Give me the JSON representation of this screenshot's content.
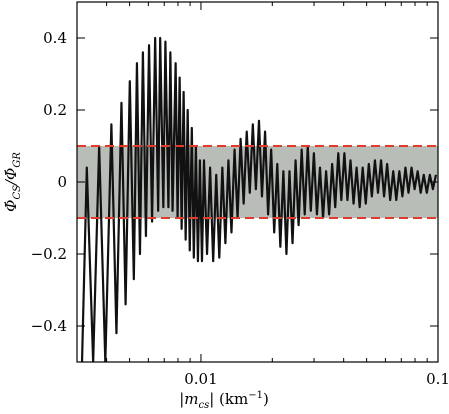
{
  "chart_data": {
    "type": "line",
    "xlabel": [
      "|m",
      "cs",
      "| (km",
      "−1",
      ")"
    ],
    "ylabel": [
      "Φ̇",
      "CS",
      "/Φ̇",
      "GR"
    ],
    "log_x": true,
    "xlim": [
      0.003,
      0.1
    ],
    "ylim": [
      -0.5,
      0.5
    ],
    "xticks": [
      0.01,
      0.1
    ],
    "xminorticks": [
      0.004,
      0.005,
      0.006,
      0.007,
      0.008,
      0.009,
      0.02,
      0.03,
      0.04,
      0.05,
      0.06,
      0.07,
      0.08,
      0.09
    ],
    "yticks": [
      {
        "value": -0.4,
        "label": "−0.4"
      },
      {
        "value": -0.2,
        "label": "−0.2"
      },
      0,
      {
        "value": 0.2,
        "label": "0.2"
      },
      {
        "value": 0.4,
        "label": "0.4"
      }
    ],
    "shaded_band": {
      "ymin": -0.1,
      "ymax": 0.1,
      "color": "#b8bdb8",
      "edge_color": "#e03c2c"
    },
    "series": [
      {
        "color": "#111111",
        "x": [
          0.00315,
          0.0033,
          0.00351,
          0.00372,
          0.00395,
          0.00419,
          0.0044,
          0.00462,
          0.00481,
          0.00501,
          0.00521,
          0.00537,
          0.00553,
          0.00569,
          0.00586,
          0.00604,
          0.00622,
          0.00641,
          0.0066,
          0.00673,
          0.00694,
          0.00708,
          0.00729,
          0.00743,
          0.00759,
          0.00782,
          0.00797,
          0.00813,
          0.00829,
          0.00845,
          0.00862,
          0.00879,
          0.00897,
          0.00915,
          0.00933,
          0.00952,
          0.00971,
          0.0099,
          0.0101,
          0.0103,
          0.01061,
          0.01093,
          0.01126,
          0.0116,
          0.01195,
          0.01231,
          0.01268,
          0.01306,
          0.01345,
          0.01386,
          0.01427,
          0.0147,
          0.01514,
          0.0156,
          0.01607,
          0.01655,
          0.01705,
          0.01757,
          0.01809,
          0.01864,
          0.0192,
          0.01978,
          0.02037,
          0.02099,
          0.02162,
          0.02227,
          0.02294,
          0.02363,
          0.02434,
          0.02507,
          0.02582,
          0.0266,
          0.0274,
          0.02822,
          0.02907,
          0.02995,
          0.03085,
          0.03178,
          0.03273,
          0.03372,
          0.03473,
          0.03577,
          0.03685,
          0.03796,
          0.0391,
          0.04028,
          0.04149,
          0.04274,
          0.04403,
          0.04535,
          0.04672,
          0.04812,
          0.04957,
          0.05107,
          0.0526,
          0.05419,
          0.05582,
          0.0575,
          0.05923,
          0.06101,
          0.06285,
          0.06474,
          0.06668,
          0.06869,
          0.07076,
          0.07289,
          0.07508,
          0.07734,
          0.07967,
          0.08207,
          0.08453,
          0.08708,
          0.0897,
          0.0924,
          0.09518,
          0.09804
        ],
        "values": [
          -0.5,
          0.04,
          -0.5,
          0.1,
          -0.5,
          0.16,
          -0.42,
          0.22,
          -0.34,
          0.28,
          -0.27,
          0.33,
          -0.2,
          0.36,
          -0.15,
          0.38,
          -0.11,
          0.4,
          -0.08,
          0.4,
          -0.07,
          0.39,
          -0.07,
          0.36,
          -0.08,
          0.33,
          -0.1,
          0.29,
          -0.13,
          0.25,
          -0.16,
          0.2,
          -0.19,
          0.15,
          -0.21,
          0.1,
          -0.22,
          0.06,
          -0.22,
          0.06,
          -0.2,
          0.04,
          -0.22,
          0.02,
          -0.21,
          0.04,
          -0.17,
          0.06,
          -0.14,
          0.09,
          -0.1,
          0.12,
          -0.06,
          0.14,
          -0.03,
          0.16,
          -0.02,
          0.17,
          -0.04,
          0.14,
          -0.09,
          0.09,
          -0.14,
          0.05,
          -0.18,
          0.03,
          -0.2,
          0.03,
          -0.17,
          0.06,
          -0.12,
          0.09,
          -0.09,
          0.1,
          -0.08,
          0.08,
          -0.09,
          0.04,
          -0.1,
          0.03,
          -0.09,
          0.05,
          -0.07,
          0.08,
          -0.05,
          0.08,
          -0.05,
          0.06,
          -0.06,
          0.04,
          -0.07,
          0.04,
          -0.06,
          0.05,
          -0.04,
          0.06,
          -0.03,
          0.06,
          -0.04,
          0.05,
          -0.05,
          0.03,
          -0.05,
          0.03,
          -0.04,
          0.04,
          -0.03,
          0.04,
          -0.02,
          0.03,
          -0.03,
          0.02,
          -0.03,
          0.02,
          -0.02,
          0.02
        ]
      }
    ]
  }
}
